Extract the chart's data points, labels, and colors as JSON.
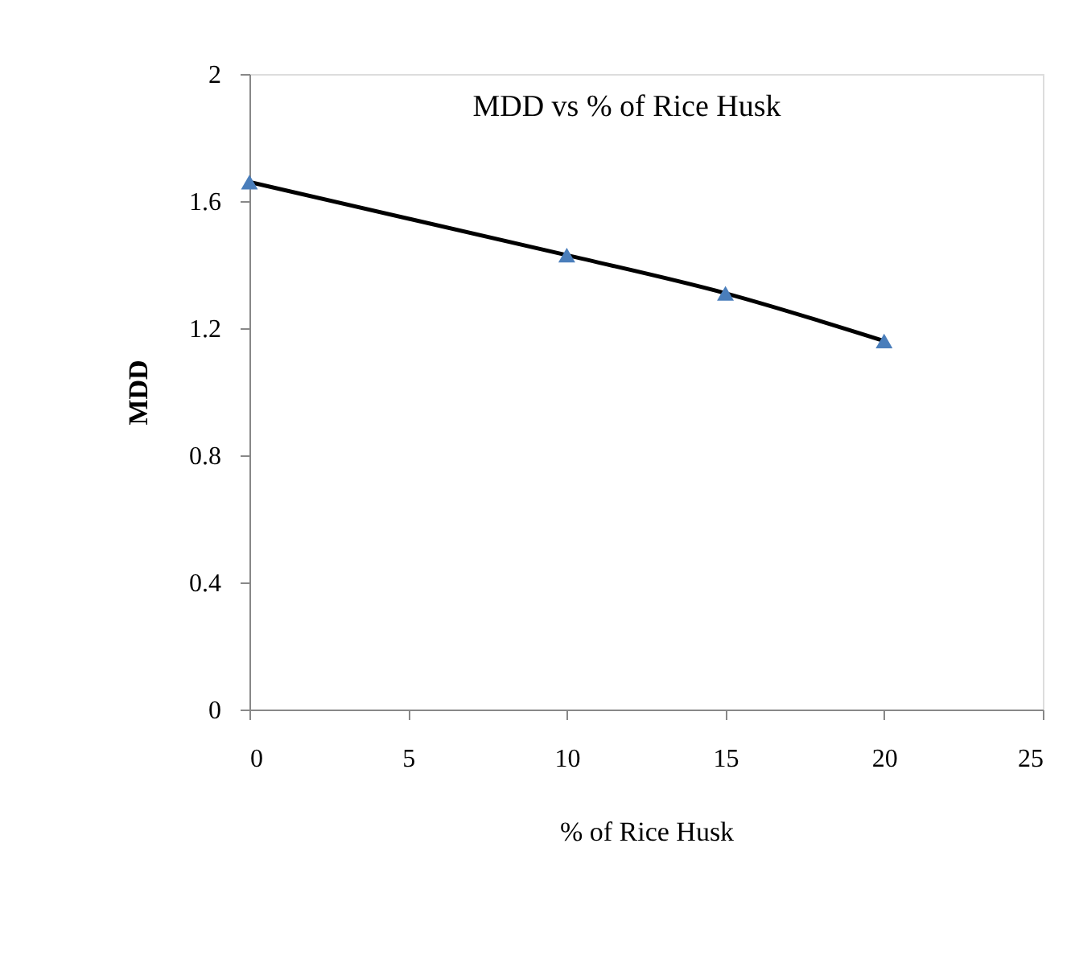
{
  "chart_data": {
    "type": "line",
    "title": "MDD vs % of Rice Husk",
    "xlabel": "% of Rice Husk",
    "ylabel": "MDD",
    "x": [
      0,
      10,
      15,
      20
    ],
    "series": [
      {
        "color": "#4a7ebb",
        "values": [
          1.66,
          1.43,
          1.31,
          1.16
        ]
      }
    ],
    "xlim": [
      0,
      25
    ],
    "xticks": [
      0,
      5,
      10,
      15,
      20,
      25
    ],
    "ylim": [
      0,
      2
    ],
    "yticks": [
      0,
      0.4,
      0.8,
      1.2,
      1.6,
      2
    ],
    "grid": false,
    "marker": "triangle",
    "line_style": "solid"
  }
}
